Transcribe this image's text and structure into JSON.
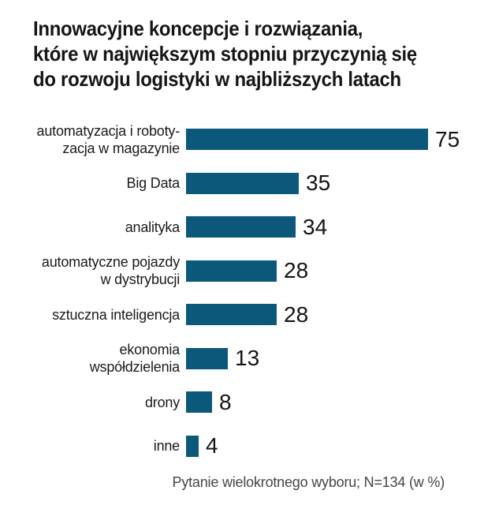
{
  "chart_data": {
    "type": "bar",
    "orientation": "horizontal",
    "title": "Innowacyjne koncepcje i rozwiązania,\nktóre w największym stopniu przyczynią się\ndo rozwoju logistyki w najbliższych latach",
    "categories": [
      "automatyzacja i roboty-\nzacja w magazynie",
      "Big Data",
      "analityka",
      "automatyczne pojazdy\nw dystrybucji",
      "sztuczna inteligencja",
      "ekonomia\nwspółdzielenia",
      "drony",
      "inne"
    ],
    "values": [
      75,
      35,
      34,
      28,
      28,
      13,
      8,
      4
    ],
    "value_unit": "%",
    "xlim": [
      0,
      80
    ],
    "grid": false,
    "axes_drawn": false,
    "value_labels_position": "end-of-bar",
    "category_labels_position": "left",
    "legend": "none",
    "note": "Pytanie wielokrotnego wyboru; N=134 (w %)",
    "bar_color": "#0b587a",
    "title_color": "#151515",
    "label_color": "#1a1a1a",
    "note_color": "#454545",
    "background_color": "#ffffff"
  }
}
